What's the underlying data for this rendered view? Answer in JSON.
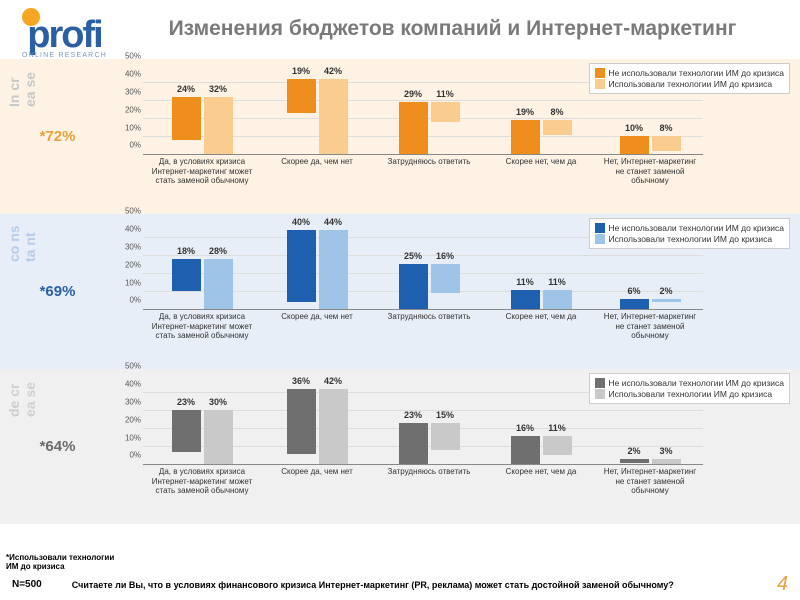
{
  "title": "Изменения бюджетов компаний и Интернет-маркетинг",
  "logo": {
    "main": "profi",
    "sub": "ONLINE RESEARCH"
  },
  "categories": [
    "Да, в условиях кризиса Интернет-маркетинг может стать заменой обычному",
    "Скорее да, чем нет",
    "Затрудняюсь ответить",
    "Скорее нет, чем да",
    "Нет, Интернет-маркетинг не станет заменой обычному"
  ],
  "legend_labels": [
    "Не использовали технологии ИМ до кризиса",
    "Использовали технологии ИМ до кризиса"
  ],
  "panels": [
    {
      "key": "increase",
      "side_label": "In cr ea se",
      "pct": "*72%",
      "bg": "#fdf2e3",
      "pct_color": "#e8a23c",
      "side_color": "#c8c8c8",
      "colors": [
        "#ee8f1d",
        "#f9cc8f"
      ],
      "ymax": 50,
      "ystep": 10,
      "data": [
        [
          24,
          32
        ],
        [
          19,
          42
        ],
        [
          29,
          11
        ],
        [
          19,
          8
        ],
        [
          10,
          8
        ]
      ]
    },
    {
      "key": "constant",
      "side_label": "co ns ta nt",
      "pct": "*69%",
      "bg": "#e8eef7",
      "pct_color": "#2b5fa3",
      "side_color": "#b7cbe6",
      "colors": [
        "#1f5fb0",
        "#9ec4e8"
      ],
      "ymax": 50,
      "ystep": 10,
      "data": [
        [
          18,
          28
        ],
        [
          40,
          44
        ],
        [
          25,
          16
        ],
        [
          11,
          11
        ],
        [
          6,
          2
        ]
      ]
    },
    {
      "key": "decrease",
      "side_label": "de cr ea se",
      "pct": "*64%",
      "bg": "#f0f0f0",
      "pct_color": "#6a6a6a",
      "side_color": "#cfcfcf",
      "colors": [
        "#6f6f6f",
        "#c9c9c9"
      ],
      "ymax": 50,
      "ystep": 10,
      "data": [
        [
          23,
          30
        ],
        [
          36,
          42
        ],
        [
          23,
          15
        ],
        [
          16,
          11
        ],
        [
          2,
          3
        ]
      ]
    }
  ],
  "footnote": "*Использовали технологии ИМ до кризиса",
  "n_count": "N=500",
  "question": "Считаете ли Вы, что в условиях финансового кризиса Интернет-маркетинг (PR, реклама) может стать достойной заменой обычному?",
  "page_num": "4",
  "cat_positions": [
    0,
    118,
    230,
    342,
    454
  ],
  "cat_widths": [
    118,
    112,
    112,
    112,
    106
  ]
}
